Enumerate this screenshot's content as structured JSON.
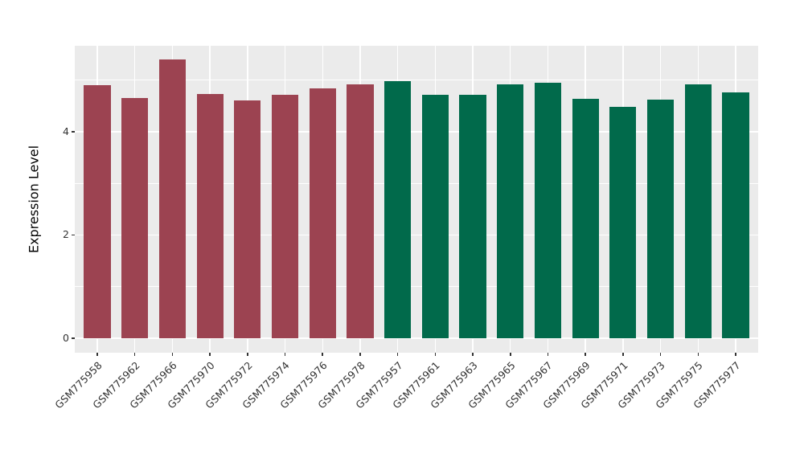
{
  "chart_data": {
    "type": "bar",
    "title": "",
    "xlabel": "",
    "ylabel": "Expression Level",
    "categories": [
      "GSM775958",
      "GSM775962",
      "GSM775966",
      "GSM775970",
      "GSM775972",
      "GSM775974",
      "GSM775976",
      "GSM775978",
      "GSM775957",
      "GSM775961",
      "GSM775963",
      "GSM775965",
      "GSM775967",
      "GSM775969",
      "GSM775971",
      "GSM775973",
      "GSM775975",
      "GSM775977"
    ],
    "values": [
      4.9,
      4.65,
      5.4,
      4.73,
      4.6,
      4.71,
      4.83,
      4.91,
      4.98,
      4.71,
      4.71,
      4.91,
      4.94,
      4.64,
      4.48,
      4.62,
      4.92,
      4.76
    ],
    "groups": [
      "maroon",
      "maroon",
      "maroon",
      "maroon",
      "maroon",
      "maroon",
      "maroon",
      "maroon",
      "green",
      "green",
      "green",
      "green",
      "green",
      "green",
      "green",
      "green",
      "green",
      "green"
    ],
    "group_colors": {
      "maroon": "#9c4351",
      "green": "#016a4b"
    },
    "ytick_values": [
      0,
      2,
      4
    ],
    "ytick_labels": [
      "0",
      "2",
      "4"
    ],
    "grid_major": [
      0,
      2,
      4
    ],
    "grid_minor": [
      1,
      3,
      5
    ],
    "ylim": [
      -0.28,
      5.66
    ],
    "panel_bg": "#ebebeb",
    "grid_color": "#ffffff",
    "axis_text_color": "#333333",
    "legend_position": "none"
  }
}
